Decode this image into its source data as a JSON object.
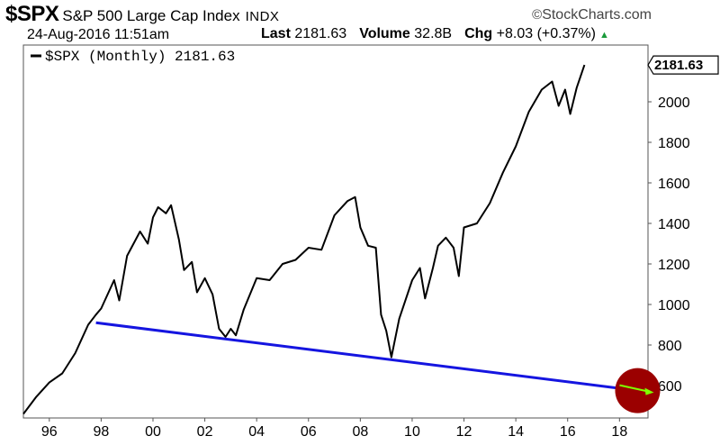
{
  "header": {
    "symbol": "$SPX",
    "name": "S&P 500 Large Cap Index",
    "exchange": "INDX",
    "brand": "StockCharts.com",
    "datetime": "24-Aug-2016 11:51am",
    "last_label": "Last",
    "last_value": "2181.63",
    "volume_label": "Volume",
    "volume_value": "32.8B",
    "chg_label": "Chg",
    "chg_value": "+8.03 (+0.37%)"
  },
  "legend": {
    "text": "$SPX (Monthly) 2181.63"
  },
  "last_tag": "2181.63",
  "colors": {
    "price": "#000000",
    "trendline": "#1515e0",
    "circle": "#9b0000",
    "arrow": "#7fff00"
  },
  "chart_data": {
    "type": "line",
    "x_tick_labels": [
      "96",
      "98",
      "00",
      "02",
      "04",
      "06",
      "08",
      "10",
      "12",
      "14",
      "16",
      "18"
    ],
    "x_tick_years": [
      1996,
      1998,
      2000,
      2002,
      2004,
      2006,
      2008,
      2010,
      2012,
      2014,
      2016,
      2018
    ],
    "xlim": [
      1995.0,
      2019.1
    ],
    "y_ticks": [
      600,
      800,
      1000,
      1200,
      1400,
      1600,
      1800,
      2000
    ],
    "ylim": [
      440,
      2280
    ],
    "series": [
      {
        "x": [
          1995.0,
          1995.5,
          1996.0,
          1996.5,
          1997.0,
          1997.5,
          1997.8,
          1998.0,
          1998.5,
          1998.7,
          1999.0,
          1999.5,
          1999.8,
          2000.0,
          2000.2,
          2000.5,
          2000.7,
          2001.0,
          2001.2,
          2001.5,
          2001.7,
          2002.0,
          2002.3,
          2002.55,
          2002.8,
          2003.0,
          2003.2,
          2003.5,
          2004.0,
          2004.5,
          2005.0,
          2005.5,
          2006.0,
          2006.5,
          2007.0,
          2007.5,
          2007.8,
          2008.0,
          2008.3,
          2008.6,
          2008.8,
          2009.0,
          2009.2,
          2009.5,
          2010.0,
          2010.3,
          2010.5,
          2010.8,
          2011.0,
          2011.3,
          2011.6,
          2011.8,
          2012.0,
          2012.5,
          2013.0,
          2013.5,
          2014.0,
          2014.5,
          2015.0,
          2015.4,
          2015.65,
          2015.9,
          2016.1,
          2016.35,
          2016.65
        ],
        "values": [
          460,
          545,
          615,
          660,
          760,
          900,
          950,
          980,
          1120,
          1020,
          1240,
          1360,
          1300,
          1430,
          1480,
          1450,
          1490,
          1320,
          1170,
          1210,
          1060,
          1130,
          1050,
          880,
          840,
          880,
          848,
          975,
          1130,
          1120,
          1200,
          1220,
          1280,
          1270,
          1440,
          1510,
          1530,
          1380,
          1290,
          1280,
          950,
          870,
          740,
          930,
          1120,
          1180,
          1030,
          1180,
          1290,
          1330,
          1280,
          1140,
          1380,
          1400,
          1500,
          1650,
          1780,
          1950,
          2060,
          2100,
          1980,
          2060,
          1940,
          2070,
          2181.63
        ]
      },
      {
        "x": [
          1997.8,
          2018.7
        ],
        "values": [
          910,
          575
        ]
      }
    ],
    "annotations": [
      {
        "type": "circle-highlight",
        "x": 2018.7,
        "y": 575
      }
    ]
  }
}
